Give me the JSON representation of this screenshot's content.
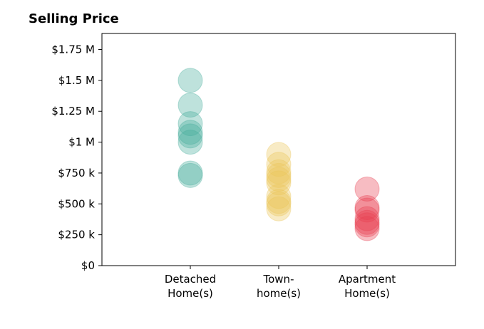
{
  "chart_data": {
    "type": "scatter",
    "title": "Selling Price",
    "categories": [
      "Detached\nHome(s)",
      "Town-\nhome(s)",
      "Apartment\nHome(s)"
    ],
    "y_ticks": [
      {
        "value": 0,
        "label": "$0"
      },
      {
        "value": 250000,
        "label": "$250 k"
      },
      {
        "value": 500000,
        "label": "$500 k"
      },
      {
        "value": 750000,
        "label": "$750 k"
      },
      {
        "value": 1000000,
        "label": "$1 M"
      },
      {
        "value": 1250000,
        "label": "$1.25 M"
      },
      {
        "value": 1500000,
        "label": "$1.5 M"
      },
      {
        "value": 1750000,
        "label": "$1.75 M"
      }
    ],
    "ylim": [
      0,
      1880000
    ],
    "xlim": [
      -1,
      3
    ],
    "grid": false,
    "series": [
      {
        "category_index": 0,
        "color": "#45ad9b",
        "values": [
          1500000,
          1300000,
          1150000,
          1080000,
          1050000,
          1000000,
          750000,
          730000
        ]
      },
      {
        "category_index": 1,
        "color": "#ecc65a",
        "values": [
          900000,
          820000,
          760000,
          730000,
          700000,
          670000,
          560000,
          520000,
          500000,
          460000
        ]
      },
      {
        "category_index": 2,
        "color": "#e9404f",
        "values": [
          620000,
          470000,
          450000,
          380000,
          350000,
          330000,
          300000
        ]
      }
    ]
  }
}
